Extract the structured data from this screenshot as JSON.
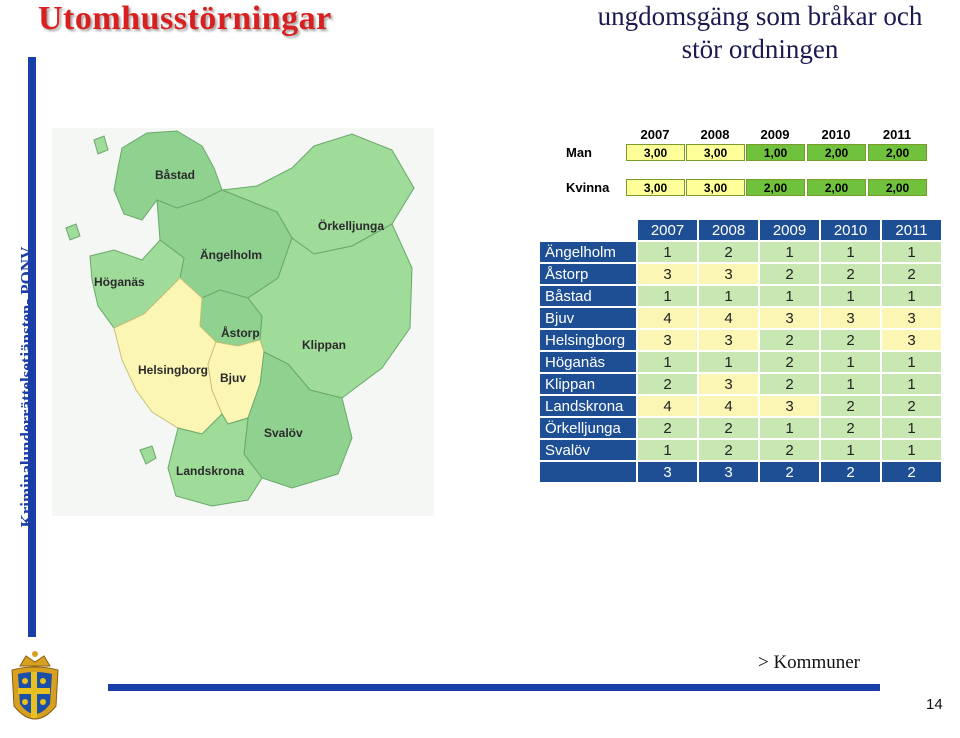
{
  "slide": {
    "title": "Utomhusstörningar",
    "subtitle_line1": "ungdomsgäng som bråkar och",
    "subtitle_line2": "stör ordningen",
    "vertical_label": "Kriminalunderrättelsetjänsten- PONV",
    "footer_link": "> Kommuner",
    "page_number": "14"
  },
  "map": {
    "labels": [
      "Båstad",
      "Ängelholm",
      "Örkelljunga",
      "Höganäs",
      "Åstorp",
      "Klippan",
      "Helsingborg",
      "Bjuv",
      "Svalöv",
      "Landskrona"
    ]
  },
  "summary_table": {
    "years": [
      "2007",
      "2008",
      "2009",
      "2010",
      "2011"
    ],
    "rows": [
      {
        "label": "Man",
        "values": [
          "3,00",
          "3,00",
          "1,00",
          "2,00",
          "2,00"
        ]
      },
      {
        "label": "Kvinna",
        "values": [
          "3,00",
          "3,00",
          "2,00",
          "2,00",
          "2,00"
        ]
      }
    ]
  },
  "detail_table": {
    "years": [
      "2007",
      "2008",
      "2009",
      "2010",
      "2011"
    ],
    "rows": [
      {
        "name": "Ängelholm",
        "values": [
          "1",
          "2",
          "1",
          "1",
          "1"
        ]
      },
      {
        "name": "Åstorp",
        "values": [
          "3",
          "3",
          "2",
          "2",
          "2"
        ]
      },
      {
        "name": "Båstad",
        "values": [
          "1",
          "1",
          "1",
          "1",
          "1"
        ]
      },
      {
        "name": "Bjuv",
        "values": [
          "4",
          "4",
          "3",
          "3",
          "3"
        ]
      },
      {
        "name": "Helsingborg",
        "values": [
          "3",
          "3",
          "2",
          "2",
          "3"
        ]
      },
      {
        "name": "Höganäs",
        "values": [
          "1",
          "1",
          "2",
          "1",
          "1"
        ]
      },
      {
        "name": "Klippan",
        "values": [
          "2",
          "3",
          "2",
          "1",
          "1"
        ]
      },
      {
        "name": "Landskrona",
        "values": [
          "4",
          "4",
          "3",
          "2",
          "2"
        ]
      },
      {
        "name": "Örkelljunga",
        "values": [
          "2",
          "2",
          "1",
          "2",
          "1"
        ]
      },
      {
        "name": "Svalöv",
        "values": [
          "1",
          "2",
          "2",
          "1",
          "1"
        ]
      },
      {
        "name": "",
        "values": [
          "3",
          "3",
          "2",
          "2",
          "2"
        ]
      }
    ]
  },
  "colors": {
    "title_red": "#d92020",
    "accent_blue": "#1a3ea8",
    "table_header_blue": "#1e4f94",
    "cell_green": "#c9e7b3",
    "cell_yellow": "#fbf6b4",
    "summary_yellow": "#ffff99",
    "summary_green": "#70c23c"
  }
}
